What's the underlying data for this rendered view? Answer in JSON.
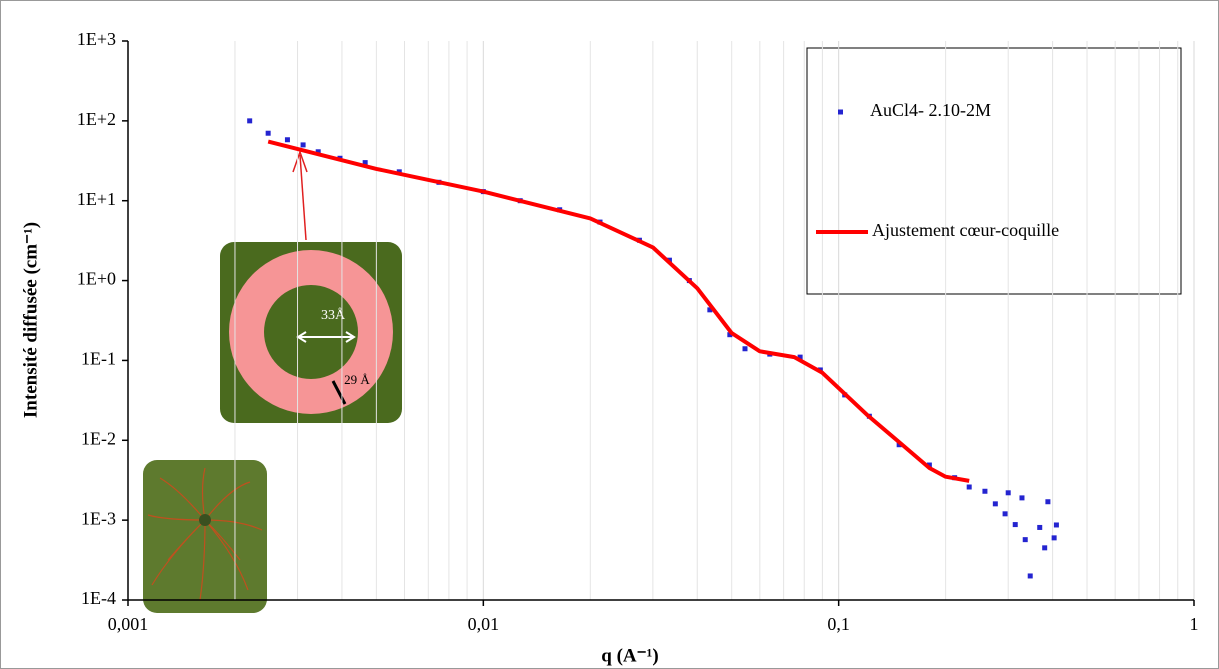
{
  "chart_data": {
    "type": "scatter",
    "x_label": "q (A⁻¹)",
    "y_label": "Intensité diffusée (cm⁻¹)",
    "log_x": true,
    "log_y": true,
    "grid": "x",
    "xlim": [
      0.001,
      1
    ],
    "ylim": [
      0.0001,
      1000
    ],
    "xticks": [
      {
        "value": 0.001,
        "label": "0,001"
      },
      {
        "value": 0.01,
        "label": "0,01"
      },
      {
        "value": 0.1,
        "label": "0,1"
      },
      1
    ],
    "yticks": [
      {
        "value": 0.0001,
        "label": "1E-4"
      },
      {
        "value": 0.001,
        "label": "1E-3"
      },
      {
        "value": 0.01,
        "label": "1E-2"
      },
      {
        "value": 0.1,
        "label": "1E-1"
      },
      {
        "value": 1,
        "label": "1E+0"
      },
      {
        "value": 10,
        "label": "1E+1"
      },
      {
        "value": 100,
        "label": "1E+2"
      },
      {
        "value": 1000,
        "label": "1E+3"
      }
    ],
    "series": [
      {
        "name": "AuCl4- 2.10-2M",
        "type": "scatter",
        "color": "#2424d0",
        "x": [
          0.0022,
          0.00248,
          0.00281,
          0.00311,
          0.00343,
          0.00395,
          0.00465,
          0.0058,
          0.0075,
          0.01,
          0.0127,
          0.0164,
          0.0213,
          0.0275,
          0.0334,
          0.038,
          0.0434,
          0.0494,
          0.0545,
          0.064,
          0.0779,
          0.0888,
          0.104,
          0.122,
          0.148,
          0.18,
          0.212,
          0.233,
          0.258,
          0.276,
          0.294,
          0.3,
          0.314,
          0.328,
          0.335,
          0.346,
          0.368,
          0.38,
          0.388,
          0.404,
          0.41
        ],
        "values": [
          100,
          70,
          58,
          50,
          41,
          34,
          30,
          23,
          17,
          13,
          10,
          7.7,
          5.4,
          3.2,
          1.8,
          1.0,
          0.43,
          0.21,
          0.14,
          0.12,
          0.11,
          0.076,
          0.037,
          0.02,
          0.0088,
          0.0049,
          0.0034,
          0.0026,
          0.0023,
          0.0016,
          0.0012,
          0.0022,
          0.00088,
          0.0019,
          0.00057,
          0.0002,
          0.00081,
          0.00045,
          0.0017,
          0.0006,
          0.00087
        ]
      },
      {
        "name": "Ajustement cœur-coquille",
        "type": "line",
        "color": "#ff0000",
        "x": [
          0.00248,
          0.005,
          0.01,
          0.02,
          0.03,
          0.04,
          0.05,
          0.06,
          0.075,
          0.09,
          0.12,
          0.15,
          0.18,
          0.2,
          0.233
        ],
        "values": [
          55,
          25,
          13,
          6,
          2.6,
          0.8,
          0.22,
          0.13,
          0.11,
          0.07,
          0.021,
          0.009,
          0.0045,
          0.0035,
          0.0031
        ]
      }
    ],
    "annotations": [
      "33Å",
      "29 Å"
    ]
  }
}
